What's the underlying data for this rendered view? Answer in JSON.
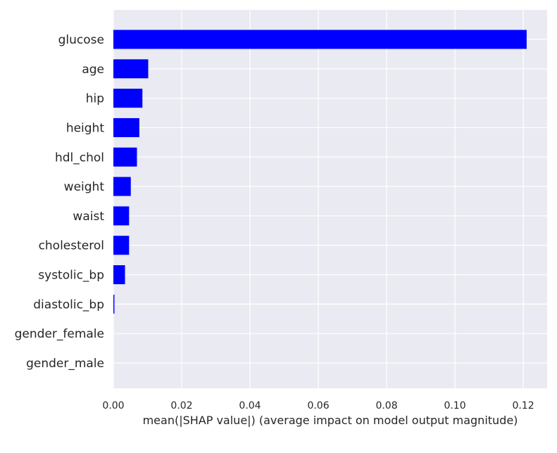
{
  "chart_data": {
    "type": "bar",
    "orientation": "horizontal",
    "title": "",
    "xlabel": "mean(|SHAP value|) (average impact on model output magnitude)",
    "ylabel": "",
    "categories": [
      "glucose",
      "age",
      "hip",
      "height",
      "hdl_chol",
      "weight",
      "waist",
      "cholesterol",
      "systolic_bp",
      "diastolic_bp",
      "gender_female",
      "gender_male"
    ],
    "values": [
      0.121,
      0.0102,
      0.0085,
      0.0076,
      0.0069,
      0.0051,
      0.0046,
      0.0046,
      0.0034,
      0.0003,
      0.0,
      0.0
    ],
    "xlim": [
      0.0,
      0.127
    ],
    "xticks": [
      0.0,
      0.02,
      0.04,
      0.06,
      0.08,
      0.1,
      0.12
    ],
    "xtick_labels": [
      "0.00",
      "0.02",
      "0.04",
      "0.06",
      "0.08",
      "0.10",
      "0.12"
    ],
    "bar_color": "#0000ff",
    "background_color": "#eaeaf2",
    "grid": true,
    "legend": "none"
  }
}
